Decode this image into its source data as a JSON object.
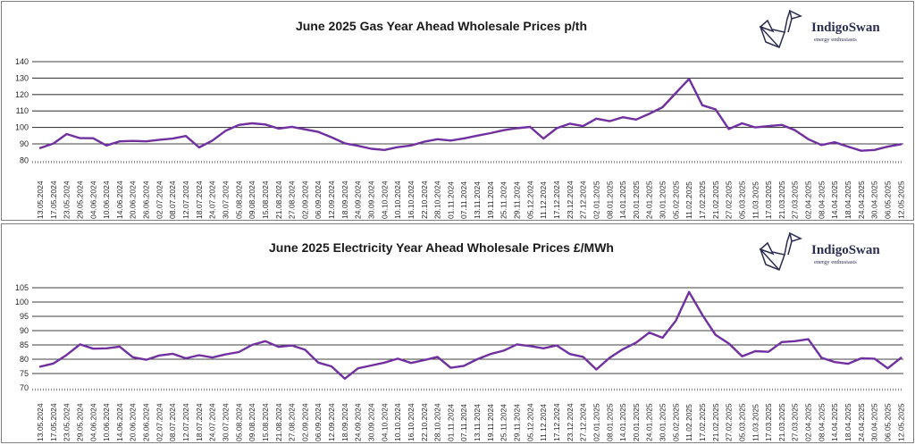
{
  "logo": {
    "name": "IndigoSwan",
    "tagline": "energy enthusiasts",
    "color": "#2d2d52"
  },
  "colors": {
    "line": "#7030A0",
    "grid": "#404040",
    "axis_dotted": "#8c8c8c",
    "title": "#1a1a1a"
  },
  "chart_data": [
    {
      "type": "line",
      "title": "June 2025 Gas Year Ahead Wholesale Prices p/th",
      "unit": "p/th",
      "ylim": [
        80,
        140
      ],
      "yticks": [
        140,
        130,
        120,
        110,
        100,
        90,
        80
      ],
      "grid": "on",
      "legend": "none",
      "line_color": "#7030A0",
      "x": [
        "13.05.2024",
        "17.05.2024",
        "23.05.2024",
        "29.05.2024",
        "04.06.2024",
        "10.06.2024",
        "14.06.2024",
        "20.06.2024",
        "26.06.2024",
        "02.07.2024",
        "08.07.2024",
        "12.07.2024",
        "18.07.2024",
        "24.07.2024",
        "30.07.2024",
        "05.08.2024",
        "09.08.2024",
        "15.08.2024",
        "21.08.2024",
        "27.08.2024",
        "02.09.2024",
        "06.09.2024",
        "12.09.2024",
        "18.09.2024",
        "24.09.2024",
        "30.09.2024",
        "04.10.2024",
        "10.10.2024",
        "16.10.2024",
        "22.10.2024",
        "28.10.2024",
        "01.11.2024",
        "07.11.2024",
        "13.11.2024",
        "19.11.2024",
        "25.11.2024",
        "29.11.2024",
        "05.12.2024",
        "11.12.2024",
        "17.12.2024",
        "23.12.2024",
        "27.12.2024",
        "02.01.2025",
        "08.01.2025",
        "14.01.2025",
        "20.01.2025",
        "24.01.2025",
        "30.01.2025",
        "05.02.2025",
        "11.02.2025",
        "17.02.2025",
        "21.02.2025",
        "27.02.2025",
        "05.03.2025",
        "11.03.2025",
        "17.03.2025",
        "21.03.2025",
        "27.03.2025",
        "02.04.2025",
        "08.04.2025",
        "14.04.2025",
        "18.04.2025",
        "24.04.2025",
        "30.04.2025",
        "06.05.2025",
        "12.05.2025"
      ],
      "values": [
        87.5,
        90.2,
        96,
        93.5,
        93.4,
        89,
        91.5,
        91.8,
        91.5,
        92.5,
        93.2,
        94.8,
        87.8,
        92,
        98,
        101.5,
        102.5,
        101.8,
        99.3,
        100.4,
        98.8,
        97.3,
        94,
        90.3,
        88.8,
        87,
        86.3,
        88,
        89,
        91.3,
        92.8,
        92,
        93.3,
        95,
        96.5,
        98.3,
        99.5,
        100.3,
        93.2,
        99.5,
        102.3,
        100.8,
        105.3,
        103.8,
        106.2,
        104.8,
        108.3,
        112.3,
        121,
        129.5,
        113.5,
        111,
        99,
        102.5,
        100,
        100.8,
        101.5,
        98.3,
        92.8,
        89.3,
        91,
        88.3,
        85.8,
        86.3,
        88.3,
        89.8
      ]
    },
    {
      "type": "line",
      "title": "June 2025 Electricity Year Ahead Wholesale Prices £/MWh",
      "unit": "£/MWh",
      "ylim": [
        70,
        105
      ],
      "yticks": [
        105,
        100,
        95,
        90,
        85,
        80,
        75,
        70
      ],
      "grid": "on",
      "legend": "none",
      "line_color": "#7030A0",
      "x": [
        "13.05.2024",
        "17.05.2024",
        "23.05.2024",
        "29.05.2024",
        "04.06.2024",
        "10.06.2024",
        "14.06.2024",
        "20.06.2024",
        "26.06.2024",
        "02.07.2024",
        "08.07.2024",
        "12.07.2024",
        "18.07.2024",
        "24.07.2024",
        "30.07.2024",
        "05.08.2024",
        "09.08.2024",
        "15.08.2024",
        "21.08.2024",
        "27.08.2024",
        "02.09.2024",
        "06.09.2024",
        "12.09.2024",
        "18.09.2024",
        "24.09.2024",
        "30.09.2024",
        "04.10.2024",
        "10.10.2024",
        "16.10.2024",
        "22.10.2024",
        "28.10.2024",
        "01.11.2024",
        "07.11.2024",
        "13.11.2024",
        "19.11.2024",
        "25.11.2024",
        "29.11.2024",
        "05.12.2024",
        "11.12.2024",
        "17.12.2024",
        "23.12.2024",
        "27.12.2024",
        "02.01.2025",
        "08.01.2025",
        "14.01.2025",
        "20.01.2025",
        "24.01.2025",
        "30.01.2025",
        "05.02.2025",
        "11.02.2025",
        "17.02.2025",
        "21.02.2025",
        "27.02.2025",
        "05.03.2025",
        "11.03.2025",
        "17.03.2025",
        "21.03.2025",
        "27.03.2025",
        "02.04.2025",
        "08.04.2025",
        "14.04.2025",
        "18.04.2025",
        "24.04.2025",
        "30.04.2025",
        "06.05.2025",
        "12.05.2025"
      ],
      "values": [
        77.4,
        78.5,
        81.5,
        85.2,
        83.7,
        83.8,
        84.4,
        80.7,
        79.8,
        81.3,
        81.9,
        80.3,
        81.4,
        80.6,
        81.7,
        82.5,
        85,
        86.3,
        84.3,
        84.8,
        83.3,
        78.8,
        77.5,
        73.2,
        76.8,
        77.8,
        78.8,
        80.2,
        78.7,
        79.7,
        80.8,
        77,
        77.7,
        80,
        81.8,
        83,
        85.2,
        84.6,
        83.8,
        84.8,
        81.8,
        80.8,
        76.4,
        80.5,
        83.5,
        85.8,
        89.3,
        87.5,
        93.5,
        103.5,
        95.5,
        88.5,
        85.5,
        81,
        82.8,
        82.6,
        86,
        86.3,
        87,
        80.5,
        79,
        78.4,
        80.3,
        80.2,
        76.8,
        80.5
      ]
    }
  ]
}
